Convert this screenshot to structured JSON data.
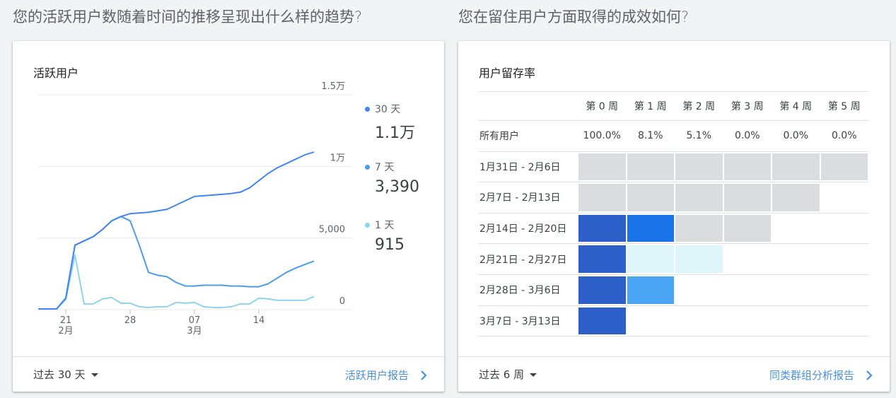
{
  "left": {
    "question": "您的活跃用户数随着时间的推移呈现出什么样的趋势?",
    "card_title": "活跃用户",
    "range_label": "过去 30 天",
    "report_link": "活跃用户报告",
    "legend": [
      {
        "label": "30 天",
        "value": "1.1万",
        "color": "#4285f4"
      },
      {
        "label": "7 天",
        "value": "3,390",
        "color": "#4c9ce8"
      },
      {
        "label": "1 天",
        "value": "915",
        "color": "#8fd3ec"
      }
    ]
  },
  "right": {
    "question": "您在留住用户方面取得的成效如何?",
    "card_title": "用户留存率",
    "range_label": "过去 6 周",
    "report_link": "同类群组分析报告",
    "weeks": [
      "第 0 周",
      "第 1 周",
      "第 2 周",
      "第 3 周",
      "第 4 周",
      "第 5 周"
    ],
    "all_users_label": "所有用户",
    "all_users_values": [
      "100.0%",
      "8.1%",
      "5.1%",
      "0.0%",
      "0.0%",
      "0.0%"
    ],
    "cohorts": [
      {
        "label": "1月31日 - 2月6日",
        "cells": [
          "#dadce0",
          "#dadce0",
          "#dadce0",
          "#dadce0",
          "#dadce0",
          "#dadce0"
        ]
      },
      {
        "label": "2月7日 - 2月13日",
        "cells": [
          "#dadce0",
          "#dadce0",
          "#dadce0",
          "#dadce0",
          "#dadce0"
        ]
      },
      {
        "label": "2月14日 - 2月20日",
        "cells": [
          "#2d5fc9",
          "#1a73e8",
          "#dadce0",
          "#dadce0"
        ]
      },
      {
        "label": "2月21日 - 2月27日",
        "cells": [
          "#2d5fc9",
          "#def6fa",
          "#def6fa"
        ]
      },
      {
        "label": "2月28日 - 3月6日",
        "cells": [
          "#2d5fc9",
          "#4aa6f5"
        ]
      },
      {
        "label": "3月7日 - 3月13日",
        "cells": [
          "#2d5fc9"
        ]
      }
    ]
  },
  "chart_data": {
    "type": "line",
    "title": "活跃用户",
    "x": [
      "2/18",
      "2/19",
      "2/20",
      "2/21",
      "2/22",
      "2/23",
      "2/24",
      "2/25",
      "2/26",
      "2/27",
      "2/28",
      "3/1",
      "3/2",
      "3/3",
      "3/4",
      "3/5",
      "3/6",
      "3/7",
      "3/8",
      "3/9",
      "3/10",
      "3/11",
      "3/12",
      "3/13",
      "3/14",
      "3/15",
      "3/16",
      "3/17",
      "3/18",
      "3/19",
      "3/20"
    ],
    "x_ticks": [
      {
        "label": "21",
        "sublabel": "2月",
        "index": 3
      },
      {
        "label": "28",
        "sublabel": "",
        "index": 10
      },
      {
        "label": "07",
        "sublabel": "3月",
        "index": 17
      },
      {
        "label": "14",
        "sublabel": "",
        "index": 24
      }
    ],
    "y_ticks": [
      {
        "value": 0,
        "label": "0"
      },
      {
        "value": 5000,
        "label": "5,000"
      },
      {
        "value": 10000,
        "label": "1万"
      },
      {
        "value": 15000,
        "label": "1.5万"
      }
    ],
    "ylim": [
      0,
      15000
    ],
    "grid": true,
    "series": [
      {
        "name": "30 天",
        "color": "#4285f4",
        "values": [
          50,
          50,
          50,
          800,
          4500,
          4800,
          5100,
          5600,
          6200,
          6500,
          6700,
          6750,
          6800,
          6900,
          7000,
          7300,
          7600,
          7900,
          7950,
          8000,
          8050,
          8100,
          8200,
          8500,
          9000,
          9500,
          9900,
          10200,
          10500,
          10800,
          11000
        ]
      },
      {
        "name": "7 天",
        "color": "#4c9ce8",
        "values": [
          50,
          50,
          50,
          800,
          4500,
          4800,
          5100,
          5600,
          6200,
          6500,
          6200,
          4500,
          2600,
          2400,
          2300,
          1900,
          1650,
          1650,
          1700,
          1700,
          1700,
          1650,
          1650,
          1600,
          1600,
          1800,
          2200,
          2600,
          2900,
          3150,
          3390
        ]
      },
      {
        "name": "1 天",
        "color": "#8fd3ec",
        "values": [
          50,
          50,
          50,
          700,
          3800,
          400,
          400,
          750,
          850,
          450,
          450,
          200,
          150,
          200,
          200,
          500,
          450,
          500,
          200,
          150,
          150,
          200,
          400,
          400,
          800,
          750,
          650,
          650,
          650,
          650,
          915
        ]
      }
    ]
  }
}
